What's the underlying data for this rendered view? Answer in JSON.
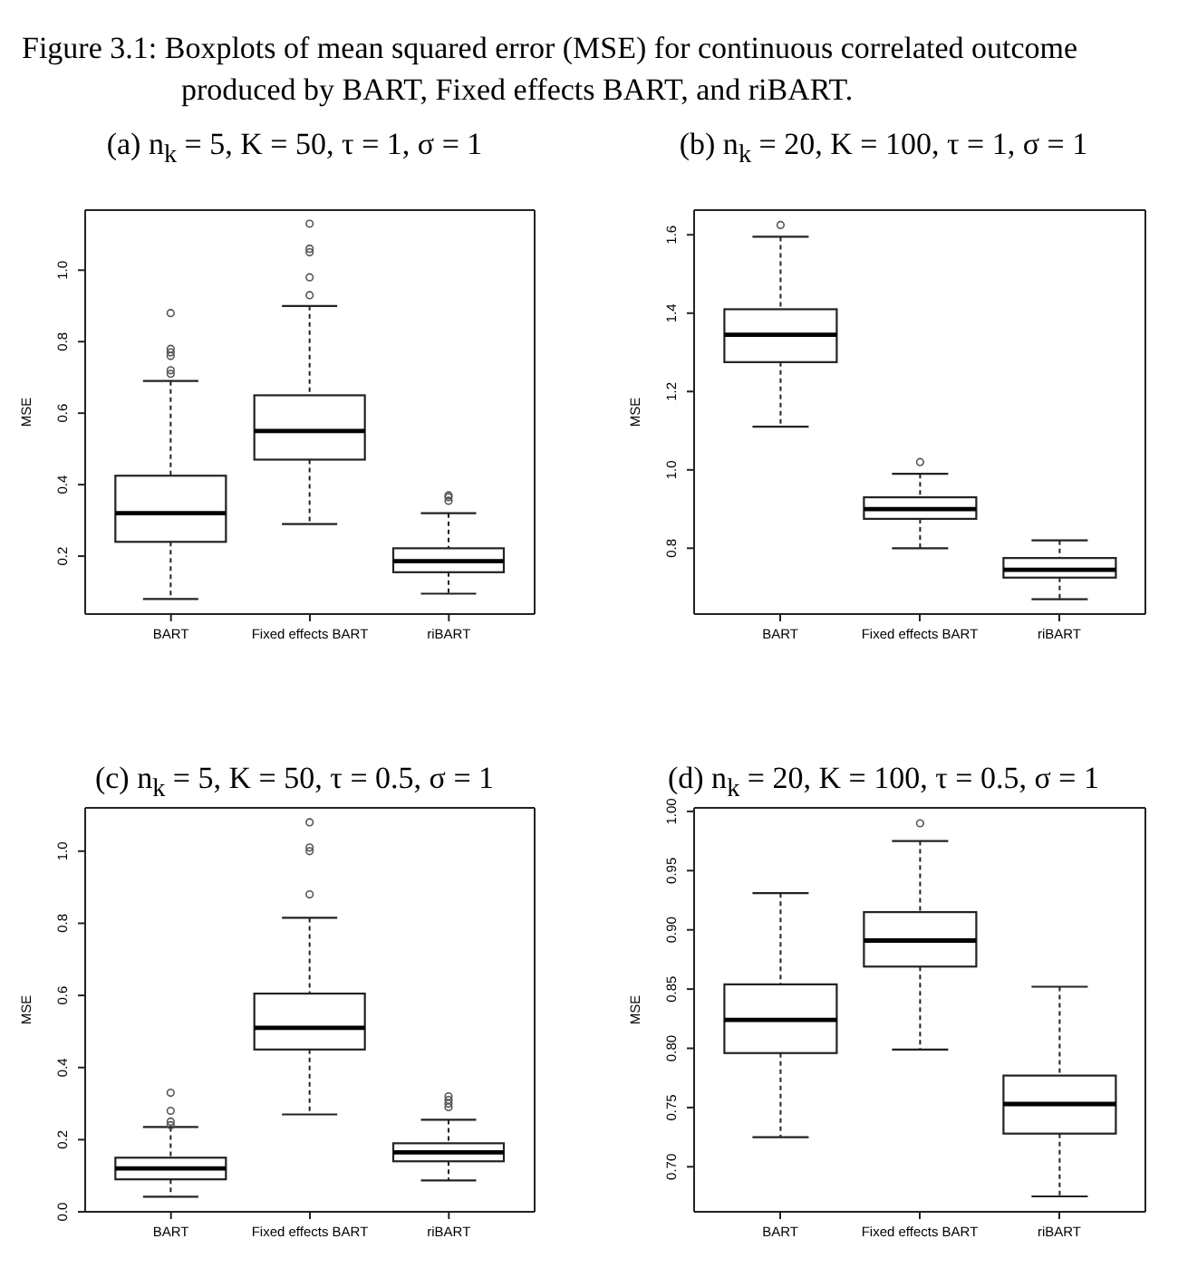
{
  "chart_data": [
    {
      "type": "box",
      "title": "(a) n$_{k}$ = 5, K = 50, τ = 1, σ = 1",
      "ylabel": "MSE",
      "annotations": [
        "Figure 3.1: Boxplots of mean squared error (MSE) for continuous correlated outcome produced by BART, Fixed effects BART, and riBART."
      ],
      "categories": [
        "BART",
        "Fixed effects BART",
        "riBART"
      ],
      "boxes": [
        {
          "low": 0.08,
          "q1": 0.24,
          "median": 0.32,
          "q3": 0.425,
          "high": 0.69,
          "outliers": [
            0.71,
            0.72,
            0.76,
            0.77,
            0.78,
            0.88
          ]
        },
        {
          "low": 0.29,
          "q1": 0.47,
          "median": 0.55,
          "q3": 0.65,
          "high": 0.9,
          "outliers": [
            0.93,
            0.98,
            1.05,
            1.06,
            1.13
          ]
        },
        {
          "low": 0.095,
          "q1": 0.155,
          "median": 0.186,
          "q3": 0.222,
          "high": 0.32,
          "outliers": [
            0.355,
            0.365,
            0.37
          ]
        }
      ],
      "ylim": [
        0.038,
        1.168
      ],
      "yticks": [
        0.2,
        0.4,
        0.6,
        0.8,
        {
          "value": 1,
          "label": "1.0"
        }
      ]
    },
    {
      "type": "box",
      "title": "(b) n$_{k}$ = 20, K = 100, τ = 1, σ = 1",
      "ylabel": "MSE",
      "categories": [
        "BART",
        "Fixed effects BART",
        "riBART"
      ],
      "boxes": [
        {
          "low": 1.11,
          "q1": 1.275,
          "median": 1.345,
          "q3": 1.41,
          "high": 1.595,
          "outliers": [
            1.625
          ]
        },
        {
          "low": 0.8,
          "q1": 0.875,
          "median": 0.9,
          "q3": 0.93,
          "high": 0.99,
          "outliers": [
            1.02
          ]
        },
        {
          "low": 0.67,
          "q1": 0.725,
          "median": 0.745,
          "q3": 0.775,
          "high": 0.82
        }
      ],
      "ylim": [
        0.632,
        1.663
      ],
      "yticks": [
        0.8,
        {
          "value": 1,
          "label": "1.0"
        },
        1.2,
        1.4,
        1.6
      ]
    },
    {
      "type": "box",
      "title": "(c) n$_{k}$ = 5, K = 50, τ = 0.5, σ = 1",
      "ylabel": "MSE",
      "categories": [
        "BART",
        "Fixed effects BART",
        "riBART"
      ],
      "boxes": [
        {
          "low": 0.042,
          "q1": 0.09,
          "median": 0.12,
          "q3": 0.15,
          "high": 0.235,
          "outliers": [
            0.24,
            0.25,
            0.28,
            0.33
          ]
        },
        {
          "low": 0.27,
          "q1": 0.45,
          "median": 0.51,
          "q3": 0.605,
          "high": 0.815,
          "outliers": [
            0.88,
            1.0,
            1.01,
            1.08
          ]
        },
        {
          "low": 0.087,
          "q1": 0.14,
          "median": 0.165,
          "q3": 0.19,
          "high": 0.255,
          "outliers": [
            0.29,
            0.3,
            0.31,
            0.32
          ]
        }
      ],
      "ylim": [
        0,
        1.12
      ],
      "yticks": [
        {
          "value": 0,
          "label": "0.0"
        },
        0.2,
        0.4,
        0.6,
        0.8,
        {
          "value": 1,
          "label": "1.0"
        }
      ]
    },
    {
      "type": "box",
      "title": "(d) n$_{k}$ = 20, K = 100, τ = 0.5, σ = 1",
      "ylabel": "MSE",
      "categories": [
        "BART",
        "Fixed effects BART",
        "riBART"
      ],
      "boxes": [
        {
          "low": 0.725,
          "q1": 0.796,
          "median": 0.824,
          "q3": 0.854,
          "high": 0.931
        },
        {
          "low": 0.799,
          "q1": 0.869,
          "median": 0.891,
          "q3": 0.915,
          "high": 0.975,
          "outliers": [
            0.99
          ]
        },
        {
          "low": 0.675,
          "q1": 0.728,
          "median": 0.753,
          "q3": 0.777,
          "high": 0.852
        }
      ],
      "ylim": [
        0.662,
        1.003
      ],
      "yticks": [
        {
          "value": 0.7,
          "label": "0.70"
        },
        0.75,
        {
          "value": 0.8,
          "label": "0.80"
        },
        0.85,
        {
          "value": 0.9,
          "label": "0.90"
        },
        0.95,
        {
          "value": 1,
          "label": "1.00"
        }
      ]
    }
  ]
}
